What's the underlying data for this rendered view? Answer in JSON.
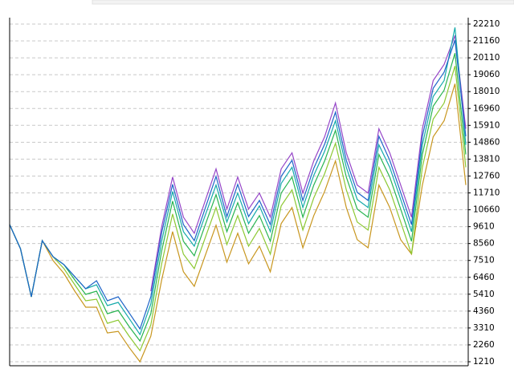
{
  "chart_data": {
    "type": "line",
    "x": [
      0,
      1,
      2,
      3,
      4,
      5,
      6,
      7,
      8,
      9,
      10,
      11,
      12,
      13,
      14,
      15,
      16,
      17,
      18,
      19,
      20,
      21,
      22,
      23,
      24,
      25,
      26,
      27,
      28,
      29,
      30,
      31,
      32,
      33,
      34,
      35,
      36,
      37,
      38,
      39,
      40,
      41,
      42
    ],
    "xlim": [
      0,
      42
    ],
    "ylim": [
      1210,
      22210
    ],
    "yticks": [
      1210,
      2260,
      3310,
      4360,
      5410,
      6460,
      7510,
      8560,
      9610,
      10660,
      11710,
      12760,
      13810,
      14860,
      15910,
      16960,
      18010,
      19060,
      20110,
      21160,
      22210
    ],
    "grid": true,
    "series": [
      {
        "color": "#c8961e",
        "values": [
          9740,
          8240,
          5250,
          8740,
          7500,
          6700,
          5600,
          4600,
          4600,
          3000,
          3100,
          2100,
          1210,
          2800,
          6300,
          9300,
          6800,
          5900,
          7800,
          9700,
          7400,
          9200,
          7300,
          8400,
          6800,
          9800,
          10800,
          8300,
          10300,
          11800,
          13700,
          10800,
          8800,
          8300,
          12200,
          10800,
          8800,
          7900,
          12200,
          15200,
          16200,
          18500,
          12200
        ]
      },
      {
        "color": "#8cc832",
        "values": [
          9740,
          8240,
          5250,
          8740,
          7740,
          7000,
          6000,
          5000,
          5100,
          3600,
          3800,
          2800,
          1900,
          3500,
          7300,
          10400,
          7900,
          7000,
          8900,
          10800,
          8500,
          10300,
          8400,
          9500,
          7900,
          10900,
          11900,
          9400,
          11400,
          12900,
          14800,
          11900,
          9900,
          9400,
          13300,
          11900,
          9900,
          7900,
          13300,
          16300,
          17300,
          19600,
          13300
        ]
      },
      {
        "color": "#28b450",
        "values": [
          9740,
          8240,
          5250,
          8740,
          7740,
          7250,
          6300,
          5400,
          5600,
          4200,
          4400,
          3400,
          2500,
          4200,
          8100,
          11200,
          8700,
          7800,
          9700,
          11600,
          9300,
          11100,
          9200,
          10300,
          8700,
          11700,
          12700,
          10200,
          12200,
          13700,
          15600,
          12700,
          10700,
          10200,
          14100,
          12700,
          10700,
          8700,
          14100,
          17100,
          18100,
          20400,
          14100
        ]
      },
      {
        "color": "#9646c8",
        "values": [
          null,
          null,
          null,
          null,
          null,
          null,
          null,
          null,
          null,
          null,
          null,
          null,
          null,
          5600,
          9600,
          12700,
          10200,
          9200,
          11200,
          13200,
          10700,
          12700,
          10700,
          11700,
          10200,
          13200,
          14200,
          11700,
          13700,
          15200,
          17300,
          14200,
          12200,
          11700,
          15700,
          14200,
          12200,
          10200,
          15700,
          18700,
          19700,
          21500,
          15700
        ]
      },
      {
        "color": "#14aaaa",
        "values": [
          9740,
          8240,
          5250,
          8740,
          7740,
          7250,
          6500,
          5750,
          6000,
          4700,
          4900,
          3900,
          2900,
          4800,
          8700,
          11800,
          9300,
          8400,
          10300,
          12200,
          9900,
          11700,
          9800,
          10900,
          9300,
          12300,
          13300,
          10800,
          12800,
          14300,
          16200,
          13300,
          11300,
          10800,
          14700,
          13300,
          11300,
          9300,
          14700,
          17700,
          18700,
          22000,
          14700
        ]
      },
      {
        "color": "#1e64c8",
        "values": [
          9740,
          8240,
          5250,
          8740,
          7740,
          7250,
          6500,
          5750,
          6250,
          5000,
          5250,
          4250,
          3250,
          5250,
          9240,
          12240,
          9740,
          8740,
          10740,
          12740,
          10240,
          12240,
          10240,
          11240,
          9740,
          12740,
          13740,
          11240,
          13240,
          14740,
          16730,
          13740,
          11740,
          11240,
          15230,
          13740,
          11740,
          9740,
          15230,
          18220,
          19220,
          21210,
          15230
        ]
      }
    ]
  }
}
